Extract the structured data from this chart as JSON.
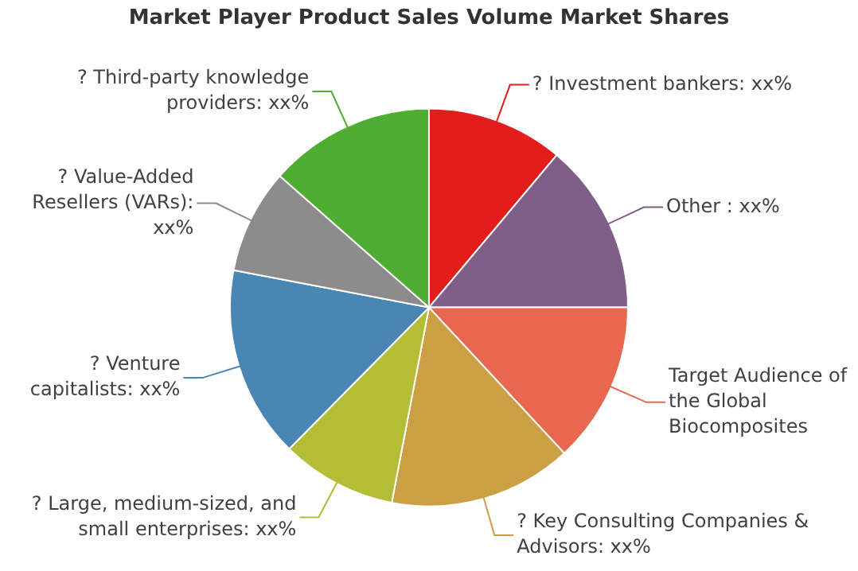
{
  "chart_data": {
    "type": "pie",
    "title": "Market Player Product Sales Volume Market Shares",
    "categories": [
      "? Investment bankers: xx%",
      "Other : xx%",
      "Target Audience of the Global Biocomposites",
      "? Key Consulting Companies & Advisors: xx%",
      "? Large, medium-sized, and small enterprises: xx%",
      "? Venture capitalists: xx%",
      "? Value-Added Resellers (VARs): xx%",
      "? Third-party knowledge providers: xx%"
    ],
    "values": [
      11.1,
      13.9,
      13.1,
      14.9,
      9.4,
      15.6,
      8.5,
      13.5
    ],
    "colors": [
      "#e31c1c",
      "#7f5f87",
      "#e8684f",
      "#cc9f45",
      "#b3bd35",
      "#4a86b4",
      "#8c8c8c",
      "#4fad32"
    ],
    "legend": false
  }
}
